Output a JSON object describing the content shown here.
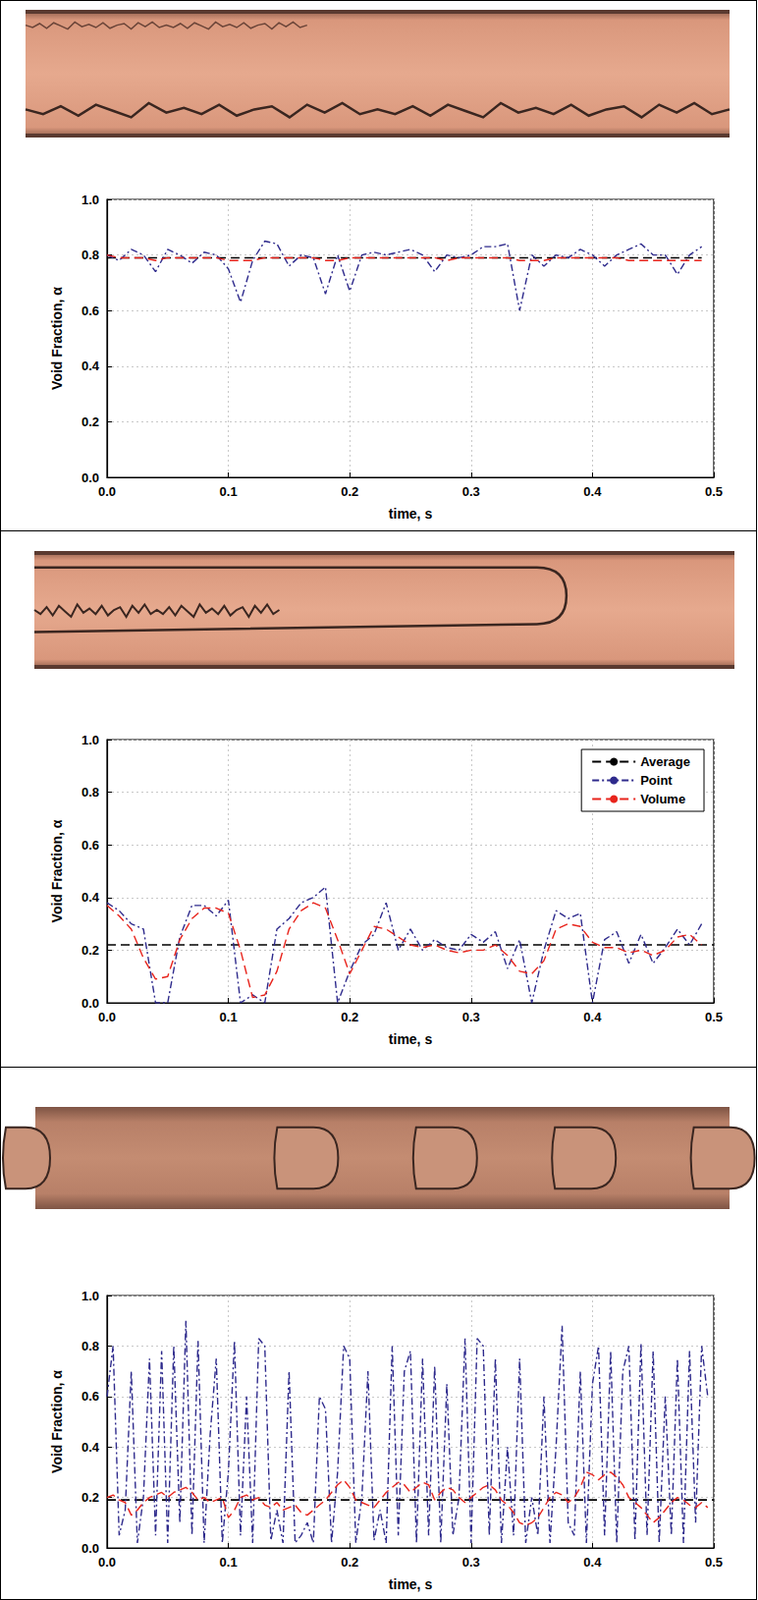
{
  "chart_data": [
    {
      "type": "line",
      "xlabel": "time, s",
      "ylabel": "Void Fraction, α",
      "xlim": [
        0,
        0.5
      ],
      "ylim": [
        0,
        1
      ],
      "xticks": [
        {
          "value": 0,
          "label": "0.0"
        },
        {
          "value": 0.1,
          "label": "0.1"
        },
        {
          "value": 0.2,
          "label": "0.2"
        },
        {
          "value": 0.3,
          "label": "0.3"
        },
        {
          "value": 0.4,
          "label": "0.4"
        },
        {
          "value": 0.5,
          "label": "0.5"
        }
      ],
      "yticks": [
        {
          "value": 0,
          "label": "0.0"
        },
        {
          "value": 0.2,
          "label": "0.2"
        },
        {
          "value": 0.4,
          "label": "0.4"
        },
        {
          "value": 0.6,
          "label": "0.6"
        },
        {
          "value": 0.8,
          "label": "0.8"
        },
        {
          "value": 1,
          "label": "1.0"
        }
      ],
      "grid": true,
      "marker": "none",
      "x": [
        0,
        0.01,
        0.02,
        0.03,
        0.04,
        0.05,
        0.06,
        0.07,
        0.08,
        0.09,
        0.1,
        0.11,
        0.12,
        0.13,
        0.14,
        0.15,
        0.16,
        0.17,
        0.18,
        0.19,
        0.2,
        0.21,
        0.22,
        0.23,
        0.24,
        0.25,
        0.26,
        0.27,
        0.28,
        0.29,
        0.3,
        0.31,
        0.32,
        0.33,
        0.34,
        0.35,
        0.36,
        0.37,
        0.38,
        0.39,
        0.4,
        0.41,
        0.42,
        0.43,
        0.44,
        0.45,
        0.46,
        0.47,
        0.48,
        0.49
      ],
      "series": [
        {
          "name": "Average",
          "color": "#000000",
          "line_style": "dashed",
          "x": [
            0,
            0.49
          ],
          "values": [
            0.79,
            0.79
          ]
        },
        {
          "name": "Point",
          "color": "#2e2a8c",
          "line_style": "dashdot",
          "values": [
            0.8,
            0.78,
            0.82,
            0.8,
            0.74,
            0.82,
            0.8,
            0.77,
            0.81,
            0.8,
            0.75,
            0.63,
            0.78,
            0.85,
            0.84,
            0.76,
            0.8,
            0.79,
            0.66,
            0.8,
            0.67,
            0.8,
            0.81,
            0.8,
            0.81,
            0.82,
            0.8,
            0.74,
            0.8,
            0.79,
            0.8,
            0.83,
            0.83,
            0.84,
            0.6,
            0.8,
            0.76,
            0.8,
            0.79,
            0.82,
            0.8,
            0.76,
            0.8,
            0.82,
            0.84,
            0.8,
            0.8,
            0.73,
            0.8,
            0.83
          ]
        },
        {
          "name": "Volume",
          "color": "#e8241c",
          "line_style": "dashed",
          "values": [
            0.8,
            0.79,
            0.79,
            0.79,
            0.78,
            0.79,
            0.79,
            0.79,
            0.79,
            0.79,
            0.78,
            0.78,
            0.78,
            0.79,
            0.79,
            0.79,
            0.79,
            0.79,
            0.78,
            0.78,
            0.79,
            0.79,
            0.79,
            0.79,
            0.79,
            0.79,
            0.79,
            0.79,
            0.78,
            0.79,
            0.79,
            0.79,
            0.79,
            0.79,
            0.78,
            0.78,
            0.78,
            0.79,
            0.79,
            0.79,
            0.79,
            0.79,
            0.79,
            0.78,
            0.78,
            0.78,
            0.78,
            0.78,
            0.78,
            0.78
          ]
        }
      ]
    },
    {
      "type": "line",
      "xlabel": "time, s",
      "ylabel": "Void Fraction, α",
      "xlim": [
        0,
        0.5
      ],
      "ylim": [
        0,
        1
      ],
      "xticks": [
        {
          "value": 0,
          "label": "0.0"
        },
        {
          "value": 0.1,
          "label": "0.1"
        },
        {
          "value": 0.2,
          "label": "0.2"
        },
        {
          "value": 0.3,
          "label": "0.3"
        },
        {
          "value": 0.4,
          "label": "0.4"
        },
        {
          "value": 0.5,
          "label": "0.5"
        }
      ],
      "yticks": [
        {
          "value": 0,
          "label": "0.0"
        },
        {
          "value": 0.2,
          "label": "0.2"
        },
        {
          "value": 0.4,
          "label": "0.4"
        },
        {
          "value": 0.6,
          "label": "0.6"
        },
        {
          "value": 0.8,
          "label": "0.8"
        },
        {
          "value": 1,
          "label": "1.0"
        }
      ],
      "grid": true,
      "marker": "none",
      "legend": "upper right",
      "x": [
        0,
        0.01,
        0.02,
        0.03,
        0.04,
        0.05,
        0.06,
        0.07,
        0.08,
        0.09,
        0.1,
        0.11,
        0.12,
        0.13,
        0.14,
        0.15,
        0.16,
        0.17,
        0.18,
        0.19,
        0.2,
        0.21,
        0.22,
        0.23,
        0.24,
        0.25,
        0.26,
        0.27,
        0.28,
        0.29,
        0.3,
        0.31,
        0.32,
        0.33,
        0.34,
        0.35,
        0.36,
        0.37,
        0.38,
        0.39,
        0.4,
        0.41,
        0.42,
        0.43,
        0.44,
        0.45,
        0.46,
        0.47,
        0.48,
        0.49
      ],
      "series": [
        {
          "name": "Average",
          "color": "#000000",
          "line_style": "dashed",
          "x": [
            0,
            0.5
          ],
          "values": [
            0.22,
            0.22
          ]
        },
        {
          "name": "Point",
          "color": "#2e2a8c",
          "line_style": "dashdot",
          "values": [
            0.38,
            0.35,
            0.3,
            0.28,
            0.0,
            0.0,
            0.25,
            0.37,
            0.37,
            0.33,
            0.39,
            0.0,
            0.03,
            0.0,
            0.28,
            0.32,
            0.38,
            0.4,
            0.44,
            0.0,
            0.12,
            0.22,
            0.26,
            0.38,
            0.2,
            0.28,
            0.2,
            0.24,
            0.21,
            0.2,
            0.26,
            0.23,
            0.27,
            0.13,
            0.24,
            0.0,
            0.2,
            0.35,
            0.32,
            0.34,
            0.0,
            0.24,
            0.27,
            0.15,
            0.26,
            0.15,
            0.21,
            0.28,
            0.22,
            0.3
          ]
        },
        {
          "name": "Volume",
          "color": "#e8241c",
          "line_style": "dashed",
          "values": [
            0.37,
            0.33,
            0.28,
            0.17,
            0.09,
            0.1,
            0.24,
            0.32,
            0.36,
            0.36,
            0.34,
            0.2,
            0.02,
            0.03,
            0.12,
            0.28,
            0.35,
            0.38,
            0.36,
            0.24,
            0.11,
            0.2,
            0.29,
            0.28,
            0.25,
            0.22,
            0.21,
            0.22,
            0.2,
            0.19,
            0.2,
            0.2,
            0.22,
            0.18,
            0.12,
            0.11,
            0.16,
            0.28,
            0.3,
            0.29,
            0.23,
            0.21,
            0.21,
            0.19,
            0.2,
            0.18,
            0.2,
            0.25,
            0.26,
            0.22
          ]
        }
      ]
    },
    {
      "type": "line",
      "xlabel": "time, s",
      "ylabel": "Void Fraction, α",
      "xlim": [
        0,
        0.5
      ],
      "ylim": [
        0,
        1
      ],
      "xticks": [
        {
          "value": 0,
          "label": "0.0"
        },
        {
          "value": 0.1,
          "label": "0.1"
        },
        {
          "value": 0.2,
          "label": "0.2"
        },
        {
          "value": 0.3,
          "label": "0.3"
        },
        {
          "value": 0.4,
          "label": "0.4"
        },
        {
          "value": 0.5,
          "label": "0.5"
        }
      ],
      "yticks": [
        {
          "value": 0,
          "label": "0.0"
        },
        {
          "value": 0.2,
          "label": "0.2"
        },
        {
          "value": 0.4,
          "label": "0.4"
        },
        {
          "value": 0.6,
          "label": "0.6"
        },
        {
          "value": 0.8,
          "label": "0.8"
        },
        {
          "value": 1,
          "label": "1.0"
        }
      ],
      "grid": true,
      "marker": "none",
      "x": [
        0,
        0.005,
        0.01,
        0.015,
        0.02,
        0.025,
        0.03,
        0.035,
        0.04,
        0.045,
        0.05,
        0.055,
        0.06,
        0.065,
        0.07,
        0.075,
        0.08,
        0.085,
        0.09,
        0.095,
        0.1,
        0.105,
        0.11,
        0.115,
        0.12,
        0.125,
        0.13,
        0.135,
        0.14,
        0.145,
        0.15,
        0.155,
        0.16,
        0.165,
        0.17,
        0.175,
        0.18,
        0.185,
        0.19,
        0.195,
        0.2,
        0.205,
        0.21,
        0.215,
        0.22,
        0.225,
        0.23,
        0.235,
        0.24,
        0.245,
        0.25,
        0.255,
        0.26,
        0.265,
        0.27,
        0.275,
        0.28,
        0.285,
        0.29,
        0.295,
        0.3,
        0.305,
        0.31,
        0.315,
        0.32,
        0.325,
        0.33,
        0.335,
        0.34,
        0.345,
        0.35,
        0.355,
        0.36,
        0.365,
        0.37,
        0.375,
        0.38,
        0.385,
        0.39,
        0.395,
        0.4,
        0.405,
        0.41,
        0.415,
        0.42,
        0.425,
        0.43,
        0.435,
        0.44,
        0.445,
        0.45,
        0.455,
        0.46,
        0.465,
        0.47,
        0.475,
        0.48,
        0.485,
        0.49,
        0.495
      ],
      "series": [
        {
          "name": "Average",
          "color": "#000000",
          "line_style": "dashed",
          "x": [
            0,
            0.5
          ],
          "values": [
            0.19,
            0.19
          ]
        },
        {
          "name": "Point",
          "color": "#2e2a8c",
          "line_style": "dashdot",
          "values": [
            0.6,
            0.8,
            0.05,
            0.15,
            0.7,
            0.02,
            0.2,
            0.75,
            0.05,
            0.78,
            0.02,
            0.8,
            0.1,
            0.9,
            0.05,
            0.82,
            0.02,
            0.45,
            0.75,
            0.02,
            0.3,
            0.82,
            0.05,
            0.6,
            0.02,
            0.83,
            0.8,
            0.03,
            0.15,
            0.02,
            0.7,
            0.02,
            0.05,
            0.1,
            0.02,
            0.6,
            0.55,
            0.02,
            0.3,
            0.8,
            0.75,
            0.02,
            0.2,
            0.7,
            0.03,
            0.15,
            0.02,
            0.8,
            0.05,
            0.7,
            0.78,
            0.02,
            0.75,
            0.05,
            0.72,
            0.02,
            0.65,
            0.05,
            0.2,
            0.83,
            0.02,
            0.83,
            0.8,
            0.05,
            0.75,
            0.02,
            0.4,
            0.05,
            0.75,
            0.02,
            0.2,
            0.05,
            0.6,
            0.02,
            0.4,
            0.88,
            0.1,
            0.05,
            0.7,
            0.02,
            0.65,
            0.8,
            0.05,
            0.78,
            0.02,
            0.7,
            0.8,
            0.03,
            0.81,
            0.05,
            0.78,
            0.02,
            0.6,
            0.05,
            0.75,
            0.02,
            0.78,
            0.1,
            0.8,
            0.6
          ]
        },
        {
          "name": "Volume",
          "color": "#e8241c",
          "line_style": "dashed",
          "values": [
            0.2,
            0.21,
            0.19,
            0.18,
            0.13,
            0.15,
            0.18,
            0.2,
            0.21,
            0.22,
            0.2,
            0.22,
            0.23,
            0.24,
            0.22,
            0.19,
            0.2,
            0.18,
            0.19,
            0.2,
            0.12,
            0.15,
            0.2,
            0.21,
            0.19,
            0.2,
            0.17,
            0.16,
            0.18,
            0.15,
            0.16,
            0.17,
            0.14,
            0.13,
            0.15,
            0.17,
            0.19,
            0.22,
            0.25,
            0.27,
            0.24,
            0.19,
            0.18,
            0.17,
            0.16,
            0.19,
            0.22,
            0.24,
            0.26,
            0.25,
            0.22,
            0.24,
            0.26,
            0.25,
            0.19,
            0.22,
            0.24,
            0.23,
            0.2,
            0.18,
            0.2,
            0.22,
            0.24,
            0.25,
            0.23,
            0.19,
            0.17,
            0.14,
            0.1,
            0.09,
            0.1,
            0.12,
            0.16,
            0.2,
            0.22,
            0.21,
            0.18,
            0.2,
            0.24,
            0.3,
            0.29,
            0.27,
            0.29,
            0.3,
            0.28,
            0.25,
            0.2,
            0.18,
            0.16,
            0.13,
            0.1,
            0.12,
            0.15,
            0.18,
            0.2,
            0.19,
            0.17,
            0.16,
            0.18,
            0.16
          ]
        }
      ]
    }
  ]
}
